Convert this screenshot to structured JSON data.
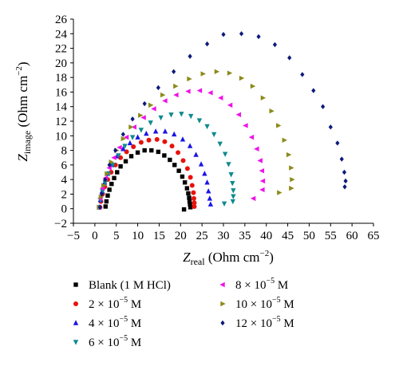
{
  "chart_data": {
    "type": "scatter",
    "xlabel": {
      "main": "Z",
      "sub": "real",
      "unit": "(Ohm cm",
      "exp": "−2",
      "close": ")"
    },
    "ylabel": {
      "main": "Z",
      "sub": "image",
      "unit": "(Ohm cm",
      "exp": "−2",
      "close": ")"
    },
    "xlim": [
      -5,
      65
    ],
    "ylim": [
      -2,
      26
    ],
    "xticks": [
      -5,
      0,
      5,
      10,
      15,
      20,
      25,
      30,
      35,
      40,
      45,
      50,
      55,
      60,
      65
    ],
    "yticks": [
      -2,
      0,
      2,
      4,
      6,
      8,
      10,
      12,
      14,
      16,
      18,
      20,
      22,
      24,
      26
    ],
    "grid": false,
    "legend_position": "bottom",
    "series": [
      {
        "name": "Blank (1 M HCl)",
        "name_parts": [
          "Blank (1 M HCl)",
          "",
          ""
        ],
        "color": "#000000",
        "marker": "square",
        "x": [
          2.5,
          2.7,
          3.0,
          3.4,
          3.9,
          4.5,
          5.2,
          6.0,
          7.2,
          8.5,
          10.0,
          11.6,
          13.2,
          14.8,
          16.2,
          17.5,
          18.6,
          19.6,
          20.4,
          21.0,
          21.5,
          21.8,
          22.0,
          22.1,
          22.2,
          22.3,
          20.8
        ],
        "y": [
          0.3,
          1.0,
          1.8,
          2.6,
          3.4,
          4.2,
          5.0,
          5.8,
          6.5,
          7.2,
          7.7,
          8.0,
          8.0,
          7.8,
          7.3,
          6.7,
          6.0,
          5.2,
          4.4,
          3.6,
          2.8,
          2.1,
          1.5,
          1.0,
          0.6,
          0.2,
          -0.1
        ]
      },
      {
        "name": "2 × 10",
        "name_parts": [
          "2 × 10",
          "−5",
          " M"
        ],
        "color": "#e8120c",
        "marker": "circle",
        "x": [
          1.2,
          1.4,
          1.8,
          2.3,
          3.0,
          3.8,
          4.8,
          6.0,
          7.4,
          9.0,
          10.8,
          12.6,
          14.5,
          16.3,
          18.0,
          19.4,
          20.6,
          21.6,
          22.3,
          22.7,
          23.0,
          23.1,
          23.2,
          23.2
        ],
        "y": [
          0.2,
          1.0,
          2.0,
          3.0,
          4.0,
          5.0,
          6.0,
          7.0,
          7.8,
          8.5,
          9.1,
          9.4,
          9.5,
          9.2,
          8.6,
          7.7,
          6.6,
          5.5,
          4.3,
          3.2,
          2.2,
          1.4,
          0.8,
          0.3
        ]
      },
      {
        "name": "4 × 10",
        "name_parts": [
          "4 × 10",
          "−5",
          " M"
        ],
        "color": "#1a14e6",
        "marker": "triangle-up",
        "x": [
          1.0,
          1.3,
          1.7,
          2.3,
          3.0,
          4.0,
          5.2,
          6.6,
          8.2,
          10.0,
          12.0,
          14.2,
          16.4,
          18.5,
          20.5,
          22.2,
          23.6,
          24.8,
          25.6,
          26.2,
          26.5,
          26.8,
          27.0
        ],
        "y": [
          0.2,
          1.2,
          2.4,
          3.6,
          4.8,
          6.0,
          7.2,
          8.2,
          9.0,
          9.8,
          10.3,
          10.6,
          10.6,
          10.2,
          9.5,
          8.6,
          7.4,
          6.1,
          4.8,
          3.6,
          2.4,
          1.4,
          0.6
        ]
      },
      {
        "name": "6 × 10",
        "name_parts": [
          "6 × 10",
          "−5",
          " M"
        ],
        "color": "#0e8a8e",
        "marker": "triangle-down",
        "x": [
          1.0,
          1.3,
          1.8,
          2.4,
          3.2,
          4.2,
          5.5,
          7.0,
          8.8,
          10.8,
          13.0,
          15.4,
          17.8,
          20.2,
          22.4,
          24.4,
          26.2,
          27.8,
          29.2,
          30.4,
          31.2,
          31.8,
          32.1,
          32.3,
          32.3,
          32.2,
          30.2
        ],
        "y": [
          0.2,
          1.2,
          2.4,
          3.6,
          4.8,
          6.0,
          7.3,
          8.6,
          9.8,
          10.8,
          11.8,
          12.5,
          12.9,
          13.0,
          12.7,
          12.1,
          11.3,
          10.2,
          8.9,
          7.5,
          6.1,
          4.7,
          3.5,
          2.5,
          1.7,
          1.0,
          0.7
        ]
      },
      {
        "name": "8 × 10",
        "name_parts": [
          "8 × 10",
          "−5",
          " M"
        ],
        "color": "#f012e8",
        "marker": "triangle-left",
        "x": [
          1.0,
          1.3,
          1.8,
          2.5,
          3.4,
          4.5,
          5.8,
          7.4,
          9.2,
          11.4,
          13.8,
          16.4,
          19.0,
          21.8,
          24.5,
          27.0,
          29.4,
          31.6,
          33.6,
          35.2,
          36.6,
          37.8,
          38.6,
          39.0,
          39.2,
          39.1,
          37.0
        ],
        "y": [
          0.2,
          1.4,
          2.8,
          4.2,
          5.6,
          7.0,
          8.4,
          9.8,
          11.2,
          12.5,
          13.7,
          14.8,
          15.6,
          16.1,
          16.2,
          15.9,
          15.2,
          14.2,
          12.9,
          11.4,
          9.8,
          8.2,
          6.6,
          5.2,
          3.8,
          2.6,
          1.4
        ]
      },
      {
        "name": "10 × 10",
        "name_parts": [
          "10 × 10",
          "−5",
          " M"
        ],
        "color": "#8c8a1a",
        "marker": "triangle-right",
        "x": [
          1.0,
          1.4,
          2.0,
          2.8,
          3.8,
          5.0,
          6.6,
          8.4,
          10.6,
          13.0,
          15.8,
          18.8,
          22.0,
          25.2,
          28.4,
          31.4,
          34.2,
          36.8,
          39.2,
          41.2,
          42.8,
          44.2,
          45.2,
          45.8,
          46.0,
          45.8,
          43.0
        ],
        "y": [
          0.2,
          1.6,
          3.2,
          4.8,
          6.4,
          8.0,
          9.6,
          11.2,
          12.8,
          14.2,
          15.6,
          16.8,
          17.8,
          18.5,
          18.8,
          18.6,
          17.9,
          16.8,
          15.2,
          13.4,
          11.4,
          9.4,
          7.4,
          5.6,
          4.0,
          2.8,
          2.2
        ]
      },
      {
        "name": "12 × 10",
        "name_parts": [
          "12 × 10",
          "−5",
          " M"
        ],
        "color": "#0c1a7a",
        "marker": "diamond",
        "x": [
          1.2,
          1.6,
          2.4,
          3.4,
          4.8,
          6.6,
          8.8,
          11.6,
          14.8,
          18.4,
          22.2,
          26.2,
          30.0,
          34.2,
          38.2,
          42.0,
          45.4,
          48.4,
          51.0,
          53.2,
          55.0,
          56.6,
          57.6,
          58.2,
          58.5,
          58.3
        ],
        "y": [
          0.2,
          2.0,
          4.0,
          6.0,
          8.0,
          10.2,
          12.3,
          14.4,
          16.6,
          18.8,
          20.9,
          22.6,
          23.9,
          24.0,
          23.6,
          22.5,
          20.7,
          18.4,
          16.2,
          14.0,
          11.2,
          9.0,
          6.8,
          5.0,
          3.8,
          3.0
        ]
      }
    ]
  }
}
